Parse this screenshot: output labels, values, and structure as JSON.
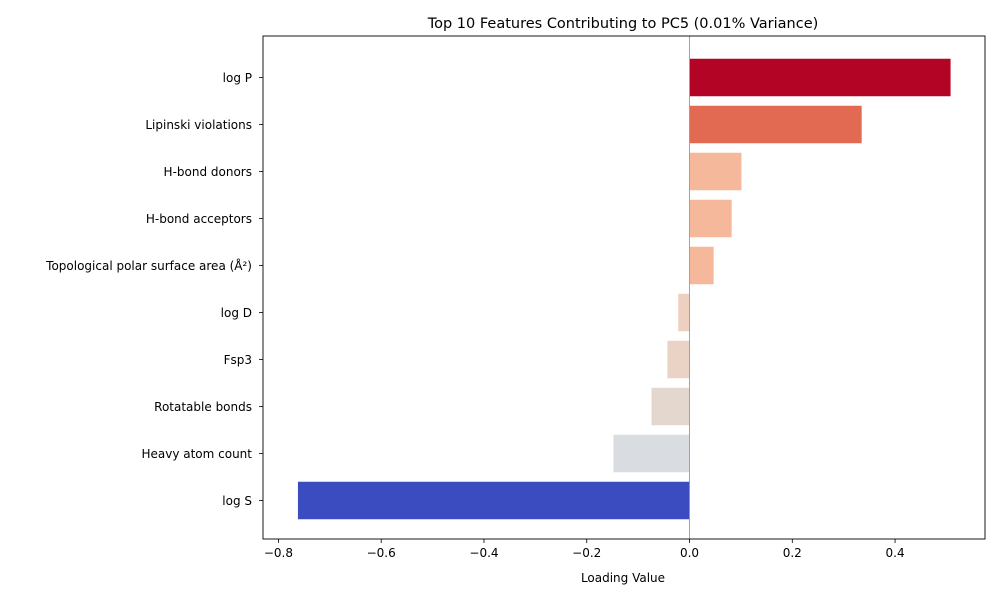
{
  "chart_data": {
    "type": "bar",
    "orientation": "horizontal",
    "title": "Top 10 Features Contributing to PC5 (0.01% Variance)",
    "xlabel": "Loading Value",
    "ylabel": "",
    "xlim": [
      -0.83,
      0.575
    ],
    "xticks": [
      -0.8,
      -0.6,
      -0.4,
      -0.2,
      0.0,
      0.2,
      0.4
    ],
    "xtick_labels": [
      "−0.8",
      "−0.6",
      "−0.4",
      "−0.2",
      "0.0",
      "0.2",
      "0.4"
    ],
    "grid": false,
    "zero_line": true,
    "categories": [
      "log P",
      "Lipinski violations",
      "H-bond donors",
      "H-bond acceptors",
      "Topological polar surface area (Å²)",
      "log D",
      "Fsp3",
      "Rotatable bonds",
      "Heavy atom count",
      "log S"
    ],
    "values": [
      0.508,
      0.335,
      0.101,
      0.082,
      0.047,
      -0.022,
      -0.043,
      -0.074,
      -0.148,
      -0.762
    ],
    "colors": [
      "#b40426",
      "#e26952",
      "#f5b89b",
      "#f5b89b",
      "#f5b89b",
      "#eed0c0",
      "#ead3c5",
      "#e4d7ce",
      "#d9dce1",
      "#3b4cc0"
    ],
    "colormap": "coolwarm"
  }
}
